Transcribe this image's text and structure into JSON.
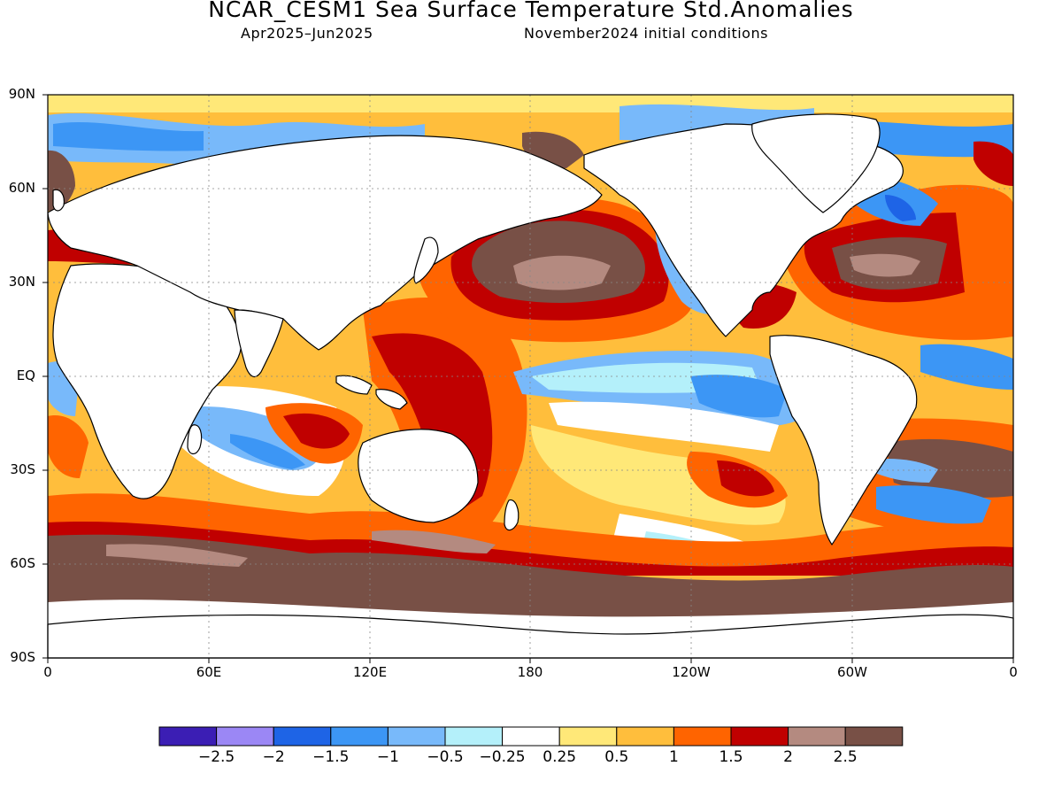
{
  "header": {
    "title": "NCAR_CESM1 Sea Surface Temperature Std.Anomalies",
    "period": "Apr2025–Jun2025",
    "init": "November2024 initial conditions"
  },
  "axes": {
    "lat_ticks": [
      "90N",
      "60N",
      "30N",
      "EQ",
      "30S",
      "60S",
      "90S"
    ],
    "lon_ticks": [
      "0",
      "60E",
      "120E",
      "180",
      "120W",
      "60W",
      "0"
    ]
  },
  "colorbar": {
    "colors": [
      "#3b1eb4",
      "#9b87f5",
      "#1e64e6",
      "#3c96f5",
      "#78b9fa",
      "#b4f0fa",
      "#ffffff",
      "#ffe878",
      "#ffbe3c",
      "#ff6400",
      "#c00000",
      "#b48a80",
      "#785046"
    ],
    "labels": [
      "−2.5",
      "−2",
      "−1.5",
      "−1",
      "−0.5",
      "−0.25",
      "0.25",
      "0.5",
      "1",
      "1.5",
      "2",
      "2.5"
    ]
  },
  "colors": {
    "land": "#ffffff",
    "coastline": "#000000",
    "grid": "#888888"
  }
}
